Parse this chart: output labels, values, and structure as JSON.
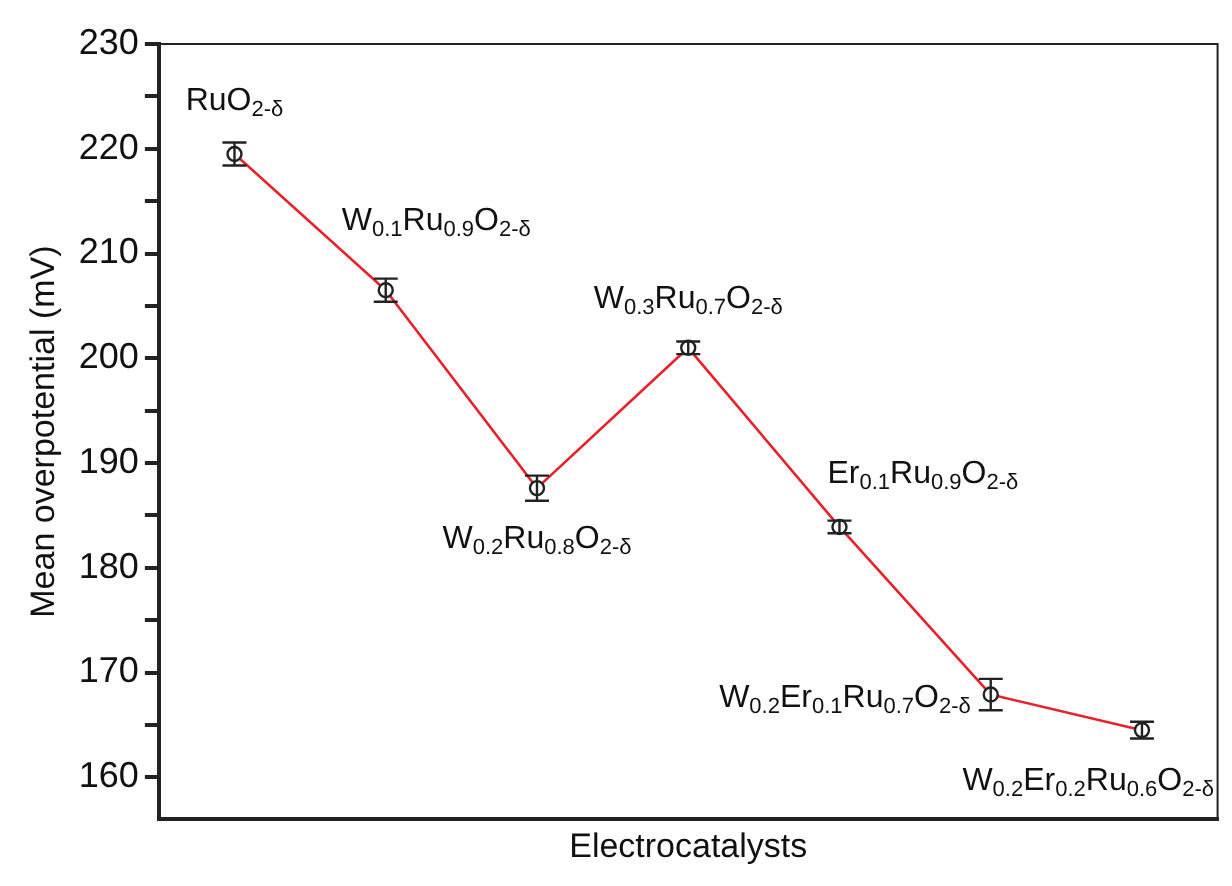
{
  "chart_data": {
    "type": "line",
    "xlabel": "Electrocatalysts",
    "ylabel": "Mean overpotential (mV)",
    "categories": [
      null,
      null,
      null,
      null,
      null,
      null,
      null
    ],
    "series": [
      {
        "color": "#e8202a",
        "values": [
          219.5,
          206.5,
          187.6,
          201.0,
          183.9,
          167.9,
          164.5
        ],
        "errors": [
          1.1,
          1.1,
          1.2,
          0.6,
          0.6,
          1.5,
          0.8
        ]
      }
    ],
    "annotations": [
      "RuO$_{2-δ}$",
      "W$_{0.1}$Ru$_{0.9}$O$_{2-δ}$",
      "W$_{0.2}$Ru$_{0.8}$O$_{2-δ}$",
      "W$_{0.3}$Ru$_{0.7}$O$_{2-δ}$",
      "Er$_{0.1}$Ru$_{0.9}$O$_{2-δ}$",
      "W$_{0.2}$Er$_{0.1}$Ru$_{0.7}$O$_{2-δ}$",
      "W$_{0.2}$Er$_{0.2}$Ru$_{0.6}$O$_{2-δ}$"
    ],
    "ylim": [
      156,
      230
    ],
    "yticks": [
      160,
      {
        "value": 165,
        "label": null
      },
      170,
      {
        "value": 175,
        "label": null
      },
      180,
      {
        "value": 185,
        "label": null
      },
      190,
      {
        "value": 195,
        "label": null
      },
      200,
      {
        "value": 205,
        "label": null
      },
      210,
      {
        "value": 215,
        "label": null
      },
      220,
      {
        "value": 225,
        "label": null
      },
      230
    ],
    "marker": "circle",
    "line_style": "solid",
    "grid": false,
    "legend": false
  }
}
